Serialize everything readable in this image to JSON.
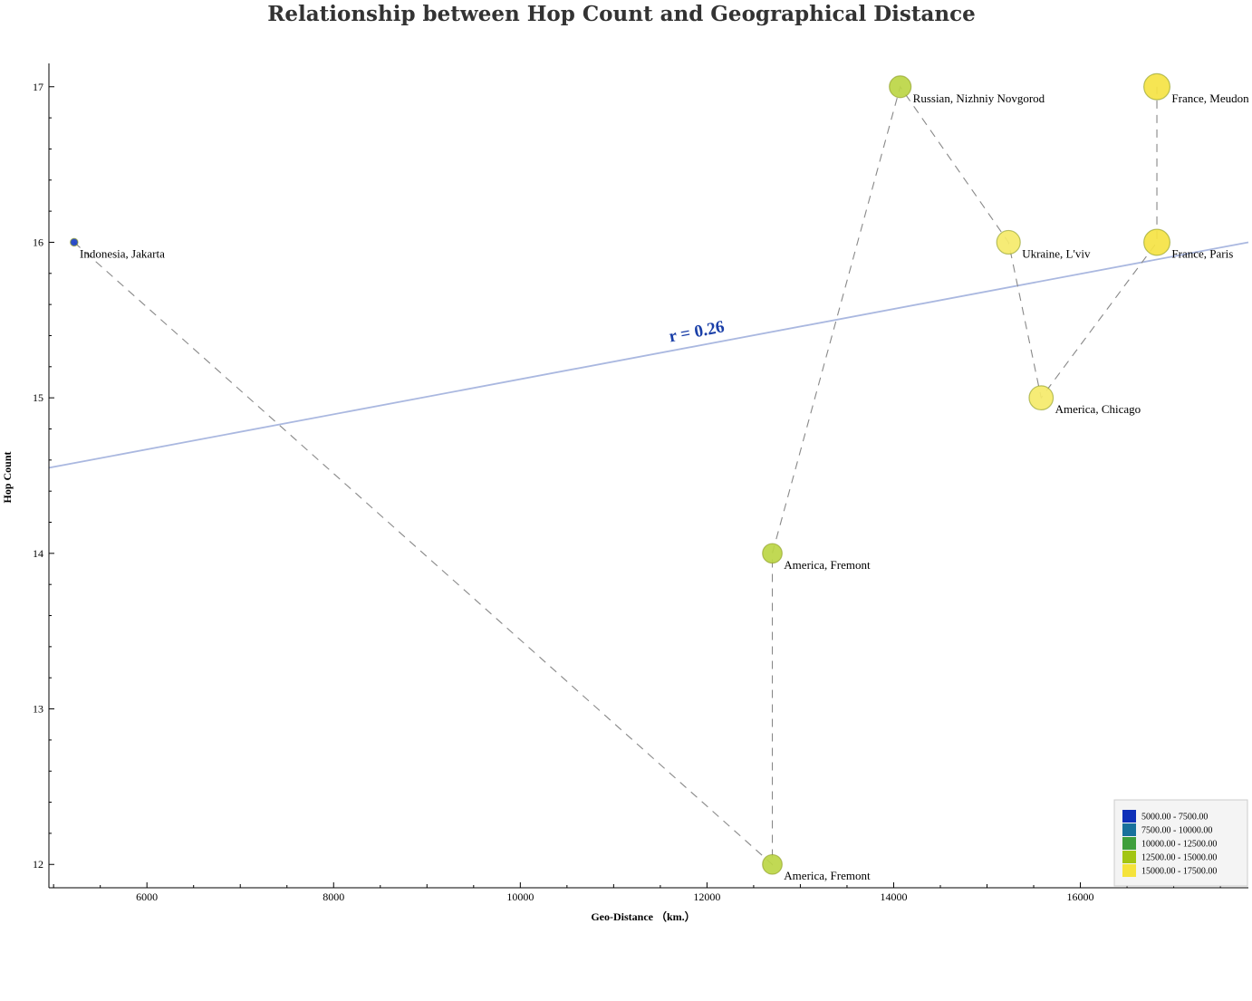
{
  "chart_data": {
    "type": "scatter",
    "title": "Relationship between Hop Count and Geographical Distance",
    "xlabel": "Geo-Distance （km.）",
    "ylabel": "Hop Count",
    "xlim": [
      4950,
      17800
    ],
    "ylim": [
      11.85,
      17.15
    ],
    "xticks": [
      6000,
      8000,
      10000,
      12000,
      14000,
      16000
    ],
    "yticks": [
      12,
      13,
      14,
      15,
      16,
      17
    ],
    "grid": false,
    "points": [
      {
        "label": "Indonesia, Jakarta",
        "x": 5220,
        "y": 16,
        "color": "#1a3fc4",
        "label_color": "#dc143c"
      },
      {
        "label": "America, Fremont",
        "x": 12700,
        "y": 12,
        "color": "#bcd645",
        "label_color": "#000000"
      },
      {
        "label": "America, Fremont",
        "x": 12700,
        "y": 14,
        "color": "#bcd645",
        "label_color": "#000000"
      },
      {
        "label": "Russian, Nizhniy Novgorod",
        "x": 14070,
        "y": 17,
        "color": "#bcd645",
        "label_color": "#000000"
      },
      {
        "label": "Ukraine, L'viv",
        "x": 15230,
        "y": 16,
        "color": "#f5ea6a",
        "label_color": "#000000"
      },
      {
        "label": "America, Chicago",
        "x": 15580,
        "y": 15,
        "color": "#f5ea6a",
        "label_color": "#000000"
      },
      {
        "label": "France, Paris",
        "x": 16820,
        "y": 16,
        "color": "#f5e344",
        "label_color": "#000000"
      },
      {
        "label": "France, Meudon",
        "x": 16820,
        "y": 17,
        "color": "#f5e344",
        "label_color": "#000000"
      }
    ],
    "trendline": {
      "x": [
        4950,
        17800
      ],
      "y": [
        14.55,
        16.0
      ],
      "color": "#aab8e0"
    },
    "annotation": {
      "text": "r = 0.26",
      "color": "#1a3fa8"
    },
    "legend": {
      "position": "bottom-right",
      "entries": [
        {
          "label": "5000.00 - 7500.00",
          "color": "#0d2fb8"
        },
        {
          "label": "7500.00 - 10000.00",
          "color": "#18719c"
        },
        {
          "label": "10000.00 - 12500.00",
          "color": "#3f9f3c"
        },
        {
          "label": "12500.00 - 15000.00",
          "color": "#a3c512"
        },
        {
          "label": "15000.00 - 17500.00",
          "color": "#f5e33b"
        }
      ]
    }
  }
}
